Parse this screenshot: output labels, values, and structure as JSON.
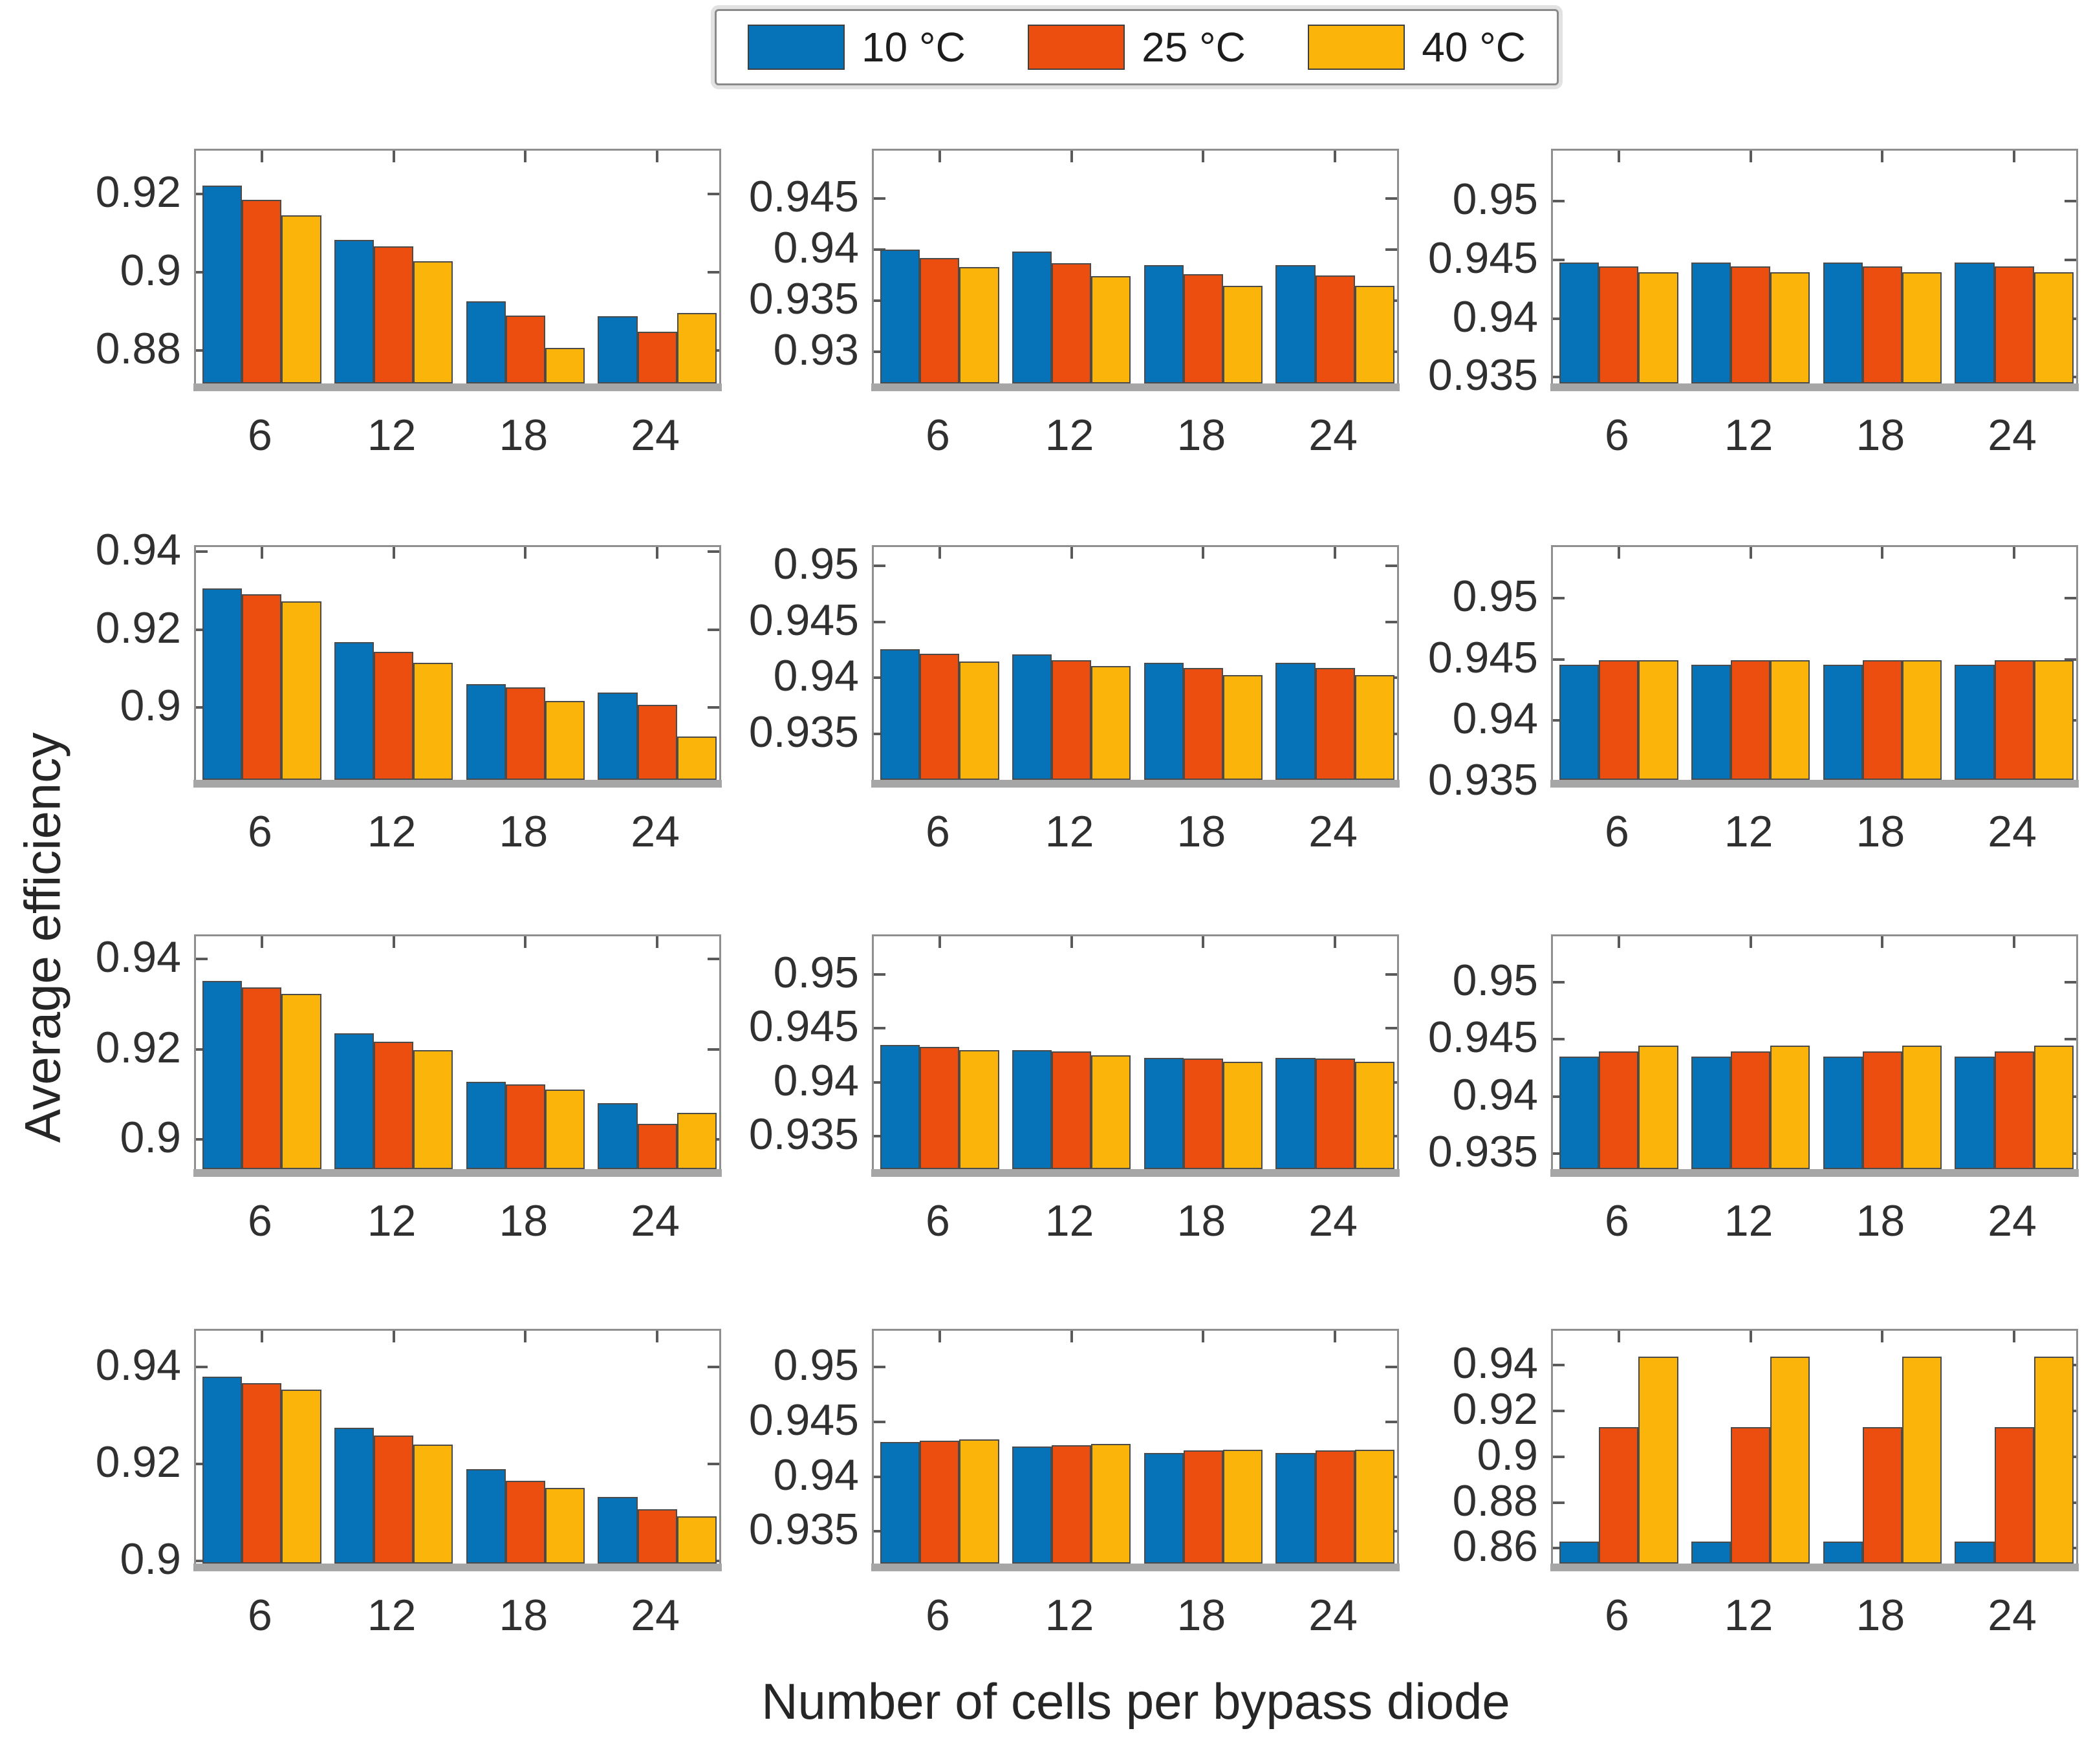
{
  "figure": {
    "xlabel": "Number of cells per bypass diode",
    "ylabel": "Average efficiency",
    "background": "#ffffff"
  },
  "legend": {
    "items": [
      {
        "label": "10 °C",
        "color": "#0673B9"
      },
      {
        "label": "25 °C",
        "color": "#EC4E10"
      },
      {
        "label": "40 °C",
        "color": "#FBB40A"
      }
    ]
  },
  "series_colors": {
    "s10": "#0673B9",
    "s25": "#EC4E10",
    "s40": "#FBB40A"
  },
  "chart_data": [
    {
      "type": "bar",
      "row": 1,
      "col": 1,
      "categories": [
        "6",
        "12",
        "18",
        "24"
      ],
      "ylim": [
        0.871,
        0.931
      ],
      "yticks": [
        {
          "v": 0.88,
          "label": "0.88"
        },
        {
          "v": 0.9,
          "label": "0.9"
        },
        {
          "v": 0.92,
          "label": "0.92"
        }
      ],
      "series": [
        {
          "name": "10 °C",
          "values": [
            0.9215,
            0.9077,
            0.892,
            0.8882
          ]
        },
        {
          "name": "25 °C",
          "values": [
            0.918,
            0.906,
            0.8883,
            0.8843
          ]
        },
        {
          "name": "40 °C",
          "values": [
            0.914,
            0.9022,
            0.8801,
            0.889
          ]
        }
      ]
    },
    {
      "type": "bar",
      "row": 1,
      "col": 2,
      "categories": [
        "6",
        "12",
        "18",
        "24"
      ],
      "ylim": [
        0.9267,
        0.9497
      ],
      "yticks": [
        {
          "v": 0.93,
          "label": "0.93"
        },
        {
          "v": 0.935,
          "label": "0.935"
        },
        {
          "v": 0.94,
          "label": "0.94"
        },
        {
          "v": 0.945,
          "label": "0.945"
        }
      ],
      "series": [
        {
          "name": "10 °C",
          "values": [
            0.9398,
            0.9396,
            0.9383,
            0.9383
          ]
        },
        {
          "name": "25 °C",
          "values": [
            0.939,
            0.9385,
            0.9374,
            0.9373
          ]
        },
        {
          "name": "40 °C",
          "values": [
            0.9381,
            0.9372,
            0.9363,
            0.9363
          ]
        }
      ]
    },
    {
      "type": "bar",
      "row": 1,
      "col": 3,
      "categories": [
        "6",
        "12",
        "18",
        "24"
      ],
      "ylim": [
        0.9343,
        0.9543
      ],
      "yticks": [
        {
          "v": 0.935,
          "label": "0.935"
        },
        {
          "v": 0.94,
          "label": "0.94"
        },
        {
          "v": 0.945,
          "label": "0.945"
        },
        {
          "v": 0.95,
          "label": "0.95"
        }
      ],
      "series": [
        {
          "name": "10 °C",
          "values": [
            0.9446,
            0.9446,
            0.9446,
            0.9446
          ]
        },
        {
          "name": "25 °C",
          "values": [
            0.9443,
            0.9443,
            0.9443,
            0.9443
          ]
        },
        {
          "name": "40 °C",
          "values": [
            0.9438,
            0.9438,
            0.9438,
            0.9438
          ]
        }
      ]
    },
    {
      "type": "bar",
      "row": 2,
      "col": 1,
      "categories": [
        "6",
        "12",
        "18",
        "24"
      ],
      "ylim": [
        0.881,
        0.9412
      ],
      "yticks": [
        {
          "v": 0.9,
          "label": "0.9"
        },
        {
          "v": 0.92,
          "label": "0.92"
        },
        {
          "v": 0.94,
          "label": "0.94"
        }
      ],
      "series": [
        {
          "name": "10 °C",
          "values": [
            0.9301,
            0.9163,
            0.9056,
            0.9034
          ]
        },
        {
          "name": "25 °C",
          "values": [
            0.9286,
            0.9139,
            0.9047,
            0.9003
          ]
        },
        {
          "name": "40 °C",
          "values": [
            0.9267,
            0.911,
            0.9013,
            0.8921
          ]
        }
      ]
    },
    {
      "type": "bar",
      "row": 2,
      "col": 2,
      "categories": [
        "6",
        "12",
        "18",
        "24"
      ],
      "ylim": [
        0.9307,
        0.9517
      ],
      "yticks": [
        {
          "v": 0.935,
          "label": "0.935"
        },
        {
          "v": 0.94,
          "label": "0.94"
        },
        {
          "v": 0.945,
          "label": "0.945"
        },
        {
          "v": 0.95,
          "label": "0.95"
        }
      ],
      "series": [
        {
          "name": "10 °C",
          "values": [
            0.9424,
            0.9419,
            0.9412,
            0.9412
          ]
        },
        {
          "name": "25 °C",
          "values": [
            0.942,
            0.9414,
            0.9407,
            0.9407
          ]
        },
        {
          "name": "40 °C",
          "values": [
            0.9413,
            0.9409,
            0.9401,
            0.9401
          ]
        }
      ]
    },
    {
      "type": "bar",
      "row": 2,
      "col": 3,
      "categories": [
        "6",
        "12",
        "18",
        "24"
      ],
      "ylim": [
        0.935,
        0.9542
      ],
      "yticks": [
        {
          "v": 0.935,
          "label": "0.935"
        },
        {
          "v": 0.94,
          "label": "0.94"
        },
        {
          "v": 0.945,
          "label": "0.945"
        },
        {
          "v": 0.95,
          "label": "0.95"
        }
      ],
      "series": [
        {
          "name": "10 °C",
          "values": [
            0.9444,
            0.9444,
            0.9444,
            0.9444
          ]
        },
        {
          "name": "25 °C",
          "values": [
            0.9448,
            0.9448,
            0.9448,
            0.9448
          ]
        },
        {
          "name": "40 °C",
          "values": [
            0.9448,
            0.9448,
            0.9448,
            0.9448
          ]
        }
      ]
    },
    {
      "type": "bar",
      "row": 3,
      "col": 1,
      "categories": [
        "6",
        "12",
        "18",
        "24"
      ],
      "ylim": [
        0.893,
        0.945
      ],
      "yticks": [
        {
          "v": 0.9,
          "label": "0.9"
        },
        {
          "v": 0.92,
          "label": "0.92"
        },
        {
          "v": 0.94,
          "label": "0.94"
        }
      ],
      "series": [
        {
          "name": "10 °C",
          "values": [
            0.9347,
            0.9231,
            0.9124,
            0.9076
          ]
        },
        {
          "name": "25 °C",
          "values": [
            0.9333,
            0.9212,
            0.9117,
            0.9031
          ]
        },
        {
          "name": "40 °C",
          "values": [
            0.9318,
            0.9193,
            0.9106,
            0.9054
          ]
        }
      ]
    },
    {
      "type": "bar",
      "row": 3,
      "col": 2,
      "categories": [
        "6",
        "12",
        "18",
        "24"
      ],
      "ylim": [
        0.9318,
        0.9535
      ],
      "yticks": [
        {
          "v": 0.935,
          "label": "0.935"
        },
        {
          "v": 0.94,
          "label": "0.94"
        },
        {
          "v": 0.945,
          "label": "0.945"
        },
        {
          "v": 0.95,
          "label": "0.95"
        }
      ],
      "series": [
        {
          "name": "10 °C",
          "values": [
            0.9433,
            0.9428,
            0.9421,
            0.9421
          ]
        },
        {
          "name": "25 °C",
          "values": [
            0.9431,
            0.9427,
            0.942,
            0.942
          ]
        },
        {
          "name": "40 °C",
          "values": [
            0.9428,
            0.9423,
            0.9417,
            0.9417
          ]
        }
      ]
    },
    {
      "type": "bar",
      "row": 3,
      "col": 3,
      "categories": [
        "6",
        "12",
        "18",
        "24"
      ],
      "ylim": [
        0.9335,
        0.954
      ],
      "yticks": [
        {
          "v": 0.935,
          "label": "0.935"
        },
        {
          "v": 0.94,
          "label": "0.94"
        },
        {
          "v": 0.945,
          "label": "0.945"
        },
        {
          "v": 0.95,
          "label": "0.95"
        }
      ],
      "series": [
        {
          "name": "10 °C",
          "values": [
            0.9433,
            0.9433,
            0.9433,
            0.9433
          ]
        },
        {
          "name": "25 °C",
          "values": [
            0.9438,
            0.9438,
            0.9438,
            0.9438
          ]
        },
        {
          "name": "40 °C",
          "values": [
            0.9443,
            0.9443,
            0.9443,
            0.9443
          ]
        }
      ]
    },
    {
      "type": "bar",
      "row": 4,
      "col": 1,
      "categories": [
        "6",
        "12",
        "18",
        "24"
      ],
      "ylim": [
        0.899,
        0.9475
      ],
      "yticks": [
        {
          "v": 0.9,
          "label": "0.9"
        },
        {
          "v": 0.92,
          "label": "0.92"
        },
        {
          "v": 0.94,
          "label": "0.94"
        }
      ],
      "series": [
        {
          "name": "10 °C",
          "values": [
            0.9376,
            0.9271,
            0.9185,
            0.9127
          ]
        },
        {
          "name": "25 °C",
          "values": [
            0.9363,
            0.9254,
            0.9161,
            0.9102
          ]
        },
        {
          "name": "40 °C",
          "values": [
            0.935,
            0.9236,
            0.9147,
            0.9088
          ]
        }
      ]
    },
    {
      "type": "bar",
      "row": 4,
      "col": 2,
      "categories": [
        "6",
        "12",
        "18",
        "24"
      ],
      "ylim": [
        0.9319,
        0.9533
      ],
      "yticks": [
        {
          "v": 0.935,
          "label": "0.935"
        },
        {
          "v": 0.94,
          "label": "0.94"
        },
        {
          "v": 0.945,
          "label": "0.945"
        },
        {
          "v": 0.95,
          "label": "0.95"
        }
      ],
      "series": [
        {
          "name": "10 °C",
          "values": [
            0.943,
            0.9426,
            0.942,
            0.942
          ]
        },
        {
          "name": "25 °C",
          "values": [
            0.9431,
            0.9427,
            0.9422,
            0.9422
          ]
        },
        {
          "name": "40 °C",
          "values": [
            0.9432,
            0.9428,
            0.9423,
            0.9423
          ]
        }
      ]
    },
    {
      "type": "bar",
      "row": 4,
      "col": 3,
      "categories": [
        "6",
        "12",
        "18",
        "24"
      ],
      "ylim": [
        0.8525,
        0.955
      ],
      "yticks": [
        {
          "v": 0.86,
          "label": "0.86"
        },
        {
          "v": 0.88,
          "label": "0.88"
        },
        {
          "v": 0.9,
          "label": "0.9"
        },
        {
          "v": 0.92,
          "label": "0.92"
        },
        {
          "v": 0.94,
          "label": "0.94"
        }
      ],
      "series": [
        {
          "name": "10 °C",
          "values": [
            0.862,
            0.862,
            0.862,
            0.862
          ]
        },
        {
          "name": "25 °C",
          "values": [
            0.912,
            0.912,
            0.912,
            0.912
          ]
        },
        {
          "name": "40 °C",
          "values": [
            0.9428,
            0.9428,
            0.9428,
            0.9428
          ]
        }
      ]
    }
  ]
}
